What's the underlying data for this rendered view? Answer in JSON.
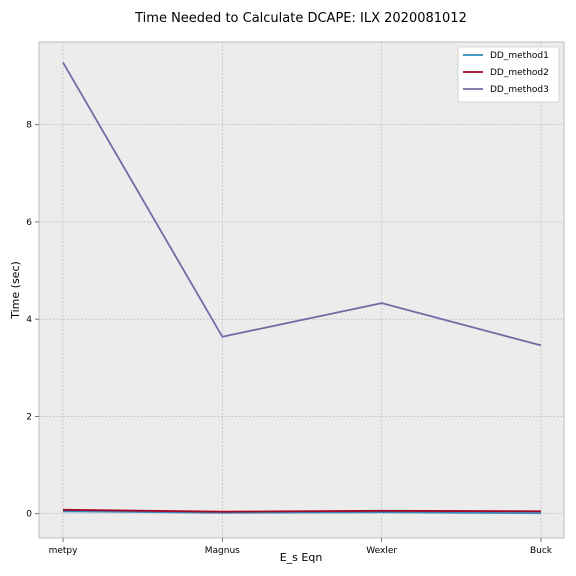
{
  "chart_data": {
    "type": "line",
    "title": "Time Needed to Calculate DCAPE: ILX 2020081012",
    "xlabel": "E_s Eqn",
    "ylabel": "Time (sec)",
    "categories": [
      "metpy",
      "Magnus",
      "Wexler",
      "Buck"
    ],
    "ylim": [
      -0.5,
      9.7
    ],
    "yticks": [
      0,
      2,
      4,
      6,
      8
    ],
    "grid": true,
    "legend_position": "top-right",
    "background": "#ececec",
    "series": [
      {
        "name": "DD_method1",
        "values": [
          0.05,
          0.02,
          0.03,
          0.01
        ],
        "color": "#348abd"
      },
      {
        "name": "DD_method2",
        "values": [
          0.08,
          0.04,
          0.06,
          0.05
        ],
        "color": "#a60628"
      },
      {
        "name": "DD_method3",
        "values": [
          9.28,
          3.64,
          4.33,
          3.46
        ],
        "color": "#7a68a6"
      }
    ]
  }
}
